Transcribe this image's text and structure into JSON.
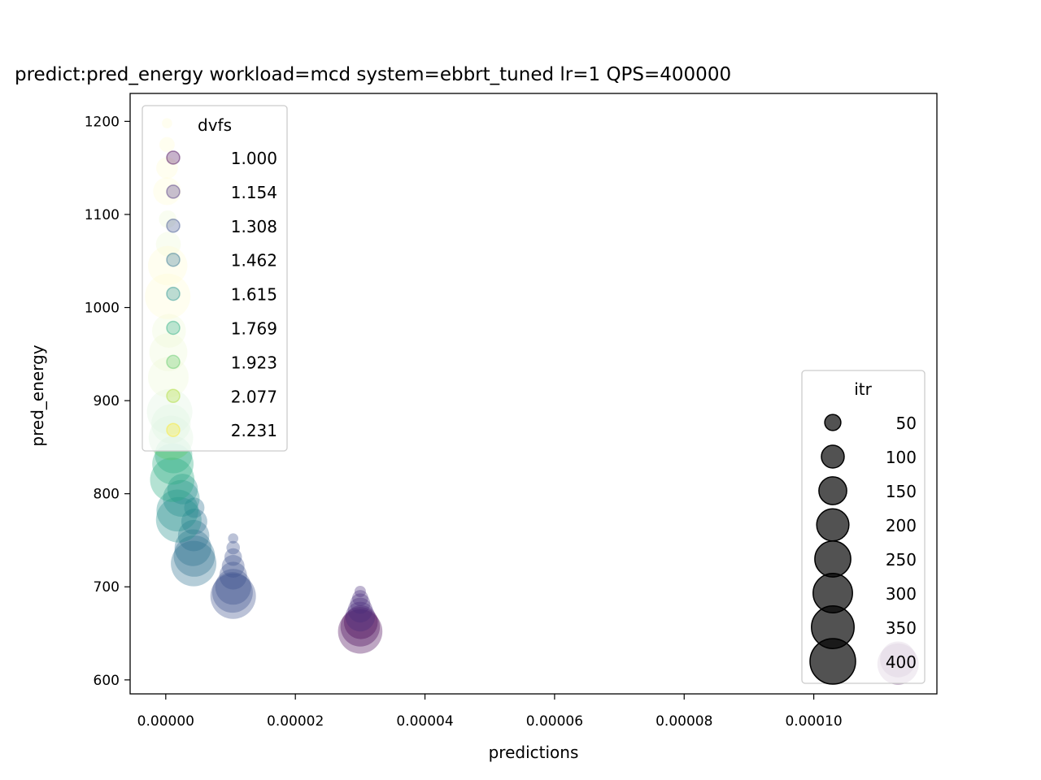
{
  "chart_data": {
    "type": "scatter",
    "title": "predict:pred_energy workload=mcd system=ebbrt_tuned lr=1 QPS=400000",
    "xlabel": "predictions",
    "ylabel": "pred_energy",
    "xlim": [
      -5.5e-06,
      0.000119
    ],
    "ylim": [
      585,
      1230
    ],
    "xticks": [
      0,
      2e-05,
      4e-05,
      6e-05,
      8e-05,
      0.0001
    ],
    "xtick_labels": [
      "0.00000",
      "0.00002",
      "0.00004",
      "0.00006",
      "0.00008",
      "0.00010"
    ],
    "yticks": [
      600,
      700,
      800,
      900,
      1000,
      1100,
      1200
    ],
    "ytick_labels": [
      "600",
      "700",
      "800",
      "900",
      "1000",
      "1100",
      "1200"
    ],
    "grid": false,
    "color_legend": {
      "title": "dvfs",
      "placement": "upper-left",
      "entries": [
        {
          "label": "1.000",
          "color": "#440154"
        },
        {
          "label": "1.154",
          "color": "#472c7a"
        },
        {
          "label": "1.308",
          "color": "#3b518b"
        },
        {
          "label": "1.462",
          "color": "#2c718e"
        },
        {
          "label": "1.615",
          "color": "#21908d"
        },
        {
          "label": "1.769",
          "color": "#27ad81"
        },
        {
          "label": "1.923",
          "color": "#5cc863"
        },
        {
          "label": "2.077",
          "color": "#aadc32"
        },
        {
          "label": "2.231",
          "color": "#fde725"
        }
      ]
    },
    "size_legend": {
      "title": "itr",
      "placement": "lower-right",
      "entries": [
        {
          "label": "50",
          "value": 50
        },
        {
          "label": "100",
          "value": 100
        },
        {
          "label": "150",
          "value": 150
        },
        {
          "label": "200",
          "value": 200
        },
        {
          "label": "250",
          "value": 250
        },
        {
          "label": "300",
          "value": 300
        },
        {
          "label": "350",
          "value": 350
        },
        {
          "label": "400",
          "value": 400
        }
      ]
    },
    "series": [
      {
        "dvfs": 1.0,
        "color": "#440154",
        "points": [
          {
            "x": 0.000113,
            "y": 617,
            "itr": 330
          },
          {
            "x": 0.000113,
            "y": 622,
            "itr": 250
          },
          {
            "x": 3e-05,
            "y": 652,
            "itr": 380
          },
          {
            "x": 3e-05,
            "y": 657,
            "itr": 300
          },
          {
            "x": 3.01e-05,
            "y": 662,
            "itr": 220
          }
        ]
      },
      {
        "dvfs": 1.154,
        "color": "#472c7a",
        "points": [
          {
            "x": 3e-05,
            "y": 668,
            "itr": 170
          },
          {
            "x": 3e-05,
            "y": 675,
            "itr": 120
          },
          {
            "x": 3e-05,
            "y": 682,
            "itr": 80
          },
          {
            "x": 3e-05,
            "y": 688,
            "itr": 50
          },
          {
            "x": 3e-05,
            "y": 695,
            "itr": 25
          }
        ]
      },
      {
        "dvfs": 1.308,
        "color": "#3b518b",
        "points": [
          {
            "x": 1.04e-05,
            "y": 690,
            "itr": 400
          },
          {
            "x": 1.03e-05,
            "y": 694,
            "itr": 320
          },
          {
            "x": 1.04e-05,
            "y": 700,
            "itr": 250
          },
          {
            "x": 1.04e-05,
            "y": 712,
            "itr": 150
          },
          {
            "x": 1.04e-05,
            "y": 722,
            "itr": 100
          },
          {
            "x": 1.04e-05,
            "y": 732,
            "itr": 60
          },
          {
            "x": 1.04e-05,
            "y": 742,
            "itr": 35
          },
          {
            "x": 1.04e-05,
            "y": 752,
            "itr": 20
          }
        ]
      },
      {
        "dvfs": 1.462,
        "color": "#2c718e",
        "points": [
          {
            "x": 4.3e-06,
            "y": 725,
            "itr": 400
          },
          {
            "x": 4.4e-06,
            "y": 733,
            "itr": 330
          },
          {
            "x": 4.2e-06,
            "y": 742,
            "itr": 260
          },
          {
            "x": 4.3e-06,
            "y": 755,
            "itr": 190
          },
          {
            "x": 4.4e-06,
            "y": 770,
            "itr": 130
          },
          {
            "x": 4.4e-06,
            "y": 785,
            "itr": 80
          }
        ]
      },
      {
        "dvfs": 1.615,
        "color": "#21908d",
        "points": [
          {
            "x": 2e-06,
            "y": 772,
            "itr": 400
          },
          {
            "x": 1.8e-06,
            "y": 782,
            "itr": 340
          },
          {
            "x": 2.4e-06,
            "y": 795,
            "itr": 260
          },
          {
            "x": 2.6e-06,
            "y": 805,
            "itr": 180
          }
        ]
      },
      {
        "dvfs": 1.769,
        "color": "#27ad81",
        "points": [
          {
            "x": 1e-06,
            "y": 815,
            "itr": 380
          },
          {
            "x": 1.1e-06,
            "y": 832,
            "itr": 330
          },
          {
            "x": 1.2e-06,
            "y": 842,
            "itr": 270
          }
        ]
      },
      {
        "dvfs": 1.923,
        "color": "#5cc863",
        "points": [
          {
            "x": 8e-07,
            "y": 860,
            "itr": 380
          },
          {
            "x": 8e-07,
            "y": 875,
            "itr": 300
          },
          {
            "x": 6e-07,
            "y": 888,
            "itr": 400
          }
        ]
      },
      {
        "dvfs": 2.077,
        "color": "#aadc32",
        "points": [
          {
            "x": 4e-07,
            "y": 925,
            "itr": 320
          },
          {
            "x": 4e-07,
            "y": 952,
            "itr": 280
          },
          {
            "x": 5e-07,
            "y": 975,
            "itr": 220
          },
          {
            "x": 4e-07,
            "y": 1068,
            "itr": 120
          },
          {
            "x": 3e-07,
            "y": 1095,
            "itr": 60
          }
        ]
      },
      {
        "dvfs": 2.231,
        "color": "#fde725",
        "points": [
          {
            "x": 3e-07,
            "y": 1012,
            "itr": 400
          },
          {
            "x": 3e-07,
            "y": 1045,
            "itr": 300
          },
          {
            "x": 2e-07,
            "y": 1125,
            "itr": 150
          },
          {
            "x": 2e-07,
            "y": 1150,
            "itr": 90
          },
          {
            "x": 2e-07,
            "y": 1175,
            "itr": 45
          },
          {
            "x": 2e-07,
            "y": 1198,
            "itr": 20
          }
        ]
      }
    ]
  }
}
